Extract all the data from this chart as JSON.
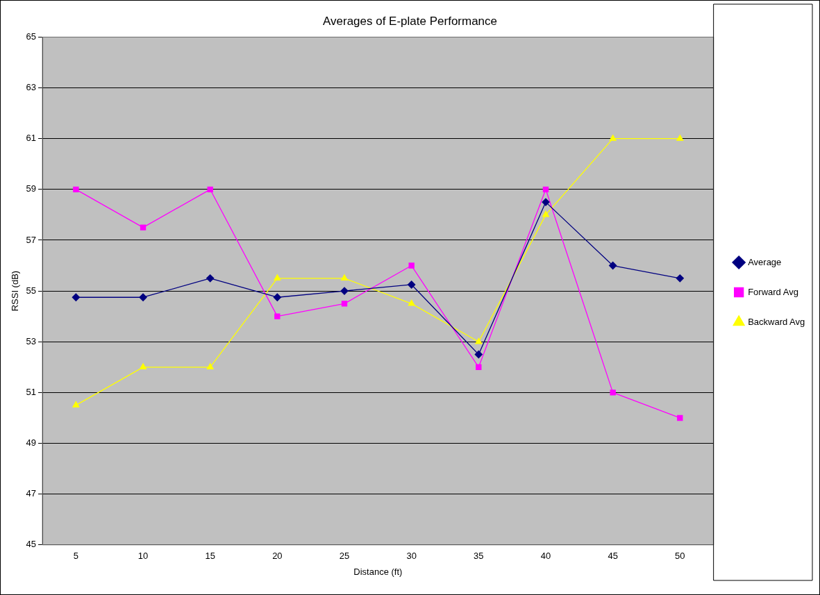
{
  "chart_data": {
    "type": "line",
    "title": "Averages of E-plate Performance",
    "xlabel": "Distance (ft)",
    "ylabel": "RSSI (dB)",
    "categories": [
      "5",
      "10",
      "15",
      "20",
      "25",
      "30",
      "35",
      "40",
      "45",
      "50"
    ],
    "series": [
      {
        "name": "Average",
        "color": "#000080",
        "marker": "diamond",
        "values": [
          54.75,
          54.75,
          55.5,
          54.75,
          55,
          55.25,
          52.5,
          58.5,
          56,
          55.5
        ]
      },
      {
        "name": "Forward Avg",
        "color": "#ff00ff",
        "marker": "square",
        "values": [
          59,
          57.5,
          59,
          54,
          54.5,
          56,
          52,
          59,
          51,
          50
        ]
      },
      {
        "name": "Backward Avg",
        "color": "#ffff00",
        "marker": "triangle",
        "values": [
          50.5,
          52,
          52,
          55.5,
          55.5,
          54.5,
          53,
          58,
          61,
          61
        ]
      }
    ],
    "ylim": [
      45,
      65
    ],
    "yticks": [
      45,
      47,
      49,
      51,
      53,
      55,
      57,
      59,
      61,
      63,
      65
    ],
    "grid": "y",
    "legend": "right"
  }
}
